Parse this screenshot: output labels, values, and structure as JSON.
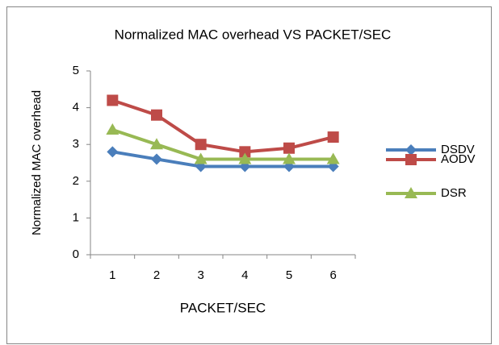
{
  "chart_data": {
    "type": "line",
    "title": "Normalized MAC overhead  VS PACKET/SEC",
    "x_label": "PACKET/SEC",
    "y_label": "Normalized MAC overhead",
    "categories": [
      "1",
      "2",
      "3",
      "4",
      "5",
      "6"
    ],
    "series": [
      {
        "name": "DSDV",
        "color": "#4a7ebb",
        "marker": "diamond",
        "values": [
          2.8,
          2.6,
          2.4,
          2.4,
          2.4,
          2.4
        ]
      },
      {
        "name": "AODV",
        "color": "#be4b48",
        "marker": "square",
        "values": [
          4.2,
          3.8,
          3.0,
          2.8,
          2.9,
          3.2
        ]
      },
      {
        "name": "DSR",
        "color": "#98b954",
        "marker": "triangle",
        "values": [
          3.4,
          3.0,
          2.6,
          2.6,
          2.6,
          2.6
        ]
      }
    ],
    "ylim": [
      0,
      5
    ],
    "yticks": [
      0,
      1,
      2,
      3,
      4,
      5
    ],
    "grid": false,
    "legend": "right"
  }
}
